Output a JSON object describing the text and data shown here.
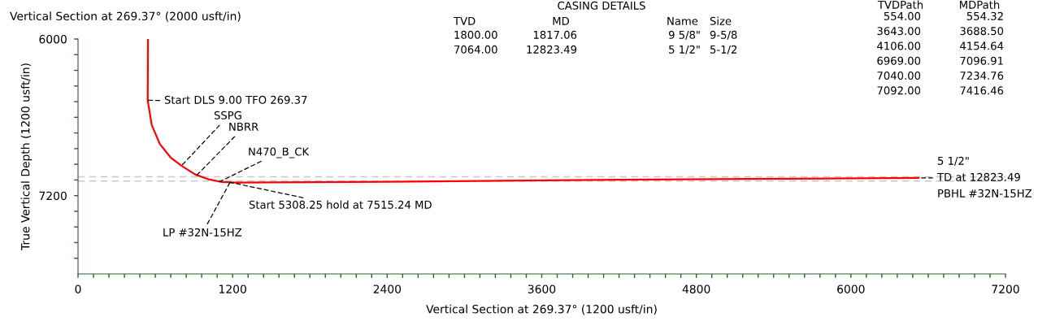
{
  "chart_data": {
    "type": "line",
    "title": "Vertical Section at 269.37° (2000 usft/in)",
    "xlabel": "Vertical Section at 269.37° (1200 usft/in)",
    "ylabel": "True Vertical Depth (1200 usft/in)",
    "x": [
      543,
      541,
      572,
      635,
      719,
      803,
      909,
      1014,
      1119,
      1224,
      2400,
      3811,
      5200,
      6525
    ],
    "series": [
      {
        "color": "#ff0000",
        "values": [
          6000,
          6471,
          6658,
          6804,
          6908,
          6971,
          7038,
          7075,
          7096,
          7100,
          7094,
          7081,
          7072,
          7064
        ]
      }
    ],
    "xlim": [
      0,
      7200
    ],
    "ylim": [
      7800,
      6000
    ],
    "xticks": [
      0,
      {
        "value": 120,
        "label": null
      },
      {
        "value": 240,
        "label": null
      },
      {
        "value": 360,
        "label": null
      },
      {
        "value": 480,
        "label": null
      },
      {
        "value": 600,
        "label": null
      },
      {
        "value": 720,
        "label": null
      },
      {
        "value": 840,
        "label": null
      },
      {
        "value": 960,
        "label": null
      },
      {
        "value": 1080,
        "label": null
      },
      1200,
      {
        "value": 1320,
        "label": null
      },
      {
        "value": 1440,
        "label": null
      },
      {
        "value": 1560,
        "label": null
      },
      {
        "value": 1680,
        "label": null
      },
      {
        "value": 1800,
        "label": null
      },
      {
        "value": 1920,
        "label": null
      },
      {
        "value": 2040,
        "label": null
      },
      {
        "value": 2160,
        "label": null
      },
      {
        "value": 2280,
        "label": null
      },
      2400,
      {
        "value": 2520,
        "label": null
      },
      {
        "value": 2640,
        "label": null
      },
      {
        "value": 2760,
        "label": null
      },
      {
        "value": 2880,
        "label": null
      },
      {
        "value": 3000,
        "label": null
      },
      {
        "value": 3120,
        "label": null
      },
      {
        "value": 3240,
        "label": null
      },
      {
        "value": 3360,
        "label": null
      },
      {
        "value": 3480,
        "label": null
      },
      3600,
      {
        "value": 3720,
        "label": null
      },
      {
        "value": 3840,
        "label": null
      },
      {
        "value": 3960,
        "label": null
      },
      {
        "value": 4080,
        "label": null
      },
      {
        "value": 4200,
        "label": null
      },
      {
        "value": 4320,
        "label": null
      },
      {
        "value": 4440,
        "label": null
      },
      {
        "value": 4560,
        "label": null
      },
      {
        "value": 4680,
        "label": null
      },
      4800,
      {
        "value": 4920,
        "label": null
      },
      {
        "value": 5040,
        "label": null
      },
      {
        "value": 5160,
        "label": null
      },
      {
        "value": 5280,
        "label": null
      },
      {
        "value": 5400,
        "label": null
      },
      {
        "value": 5520,
        "label": null
      },
      {
        "value": 5640,
        "label": null
      },
      {
        "value": 5760,
        "label": null
      },
      {
        "value": 5880,
        "label": null
      },
      6000,
      {
        "value": 6120,
        "label": null
      },
      {
        "value": 6240,
        "label": null
      },
      {
        "value": 6360,
        "label": null
      },
      {
        "value": 6480,
        "label": null
      },
      {
        "value": 6600,
        "label": null
      },
      {
        "value": 6720,
        "label": null
      },
      {
        "value": 6840,
        "label": null
      },
      {
        "value": 6960,
        "label": null
      },
      {
        "value": 7080,
        "label": null
      },
      7200
    ],
    "yticks": [
      6000,
      {
        "value": 6120,
        "label": null
      },
      {
        "value": 6240,
        "label": null
      },
      {
        "value": 6360,
        "label": null
      },
      {
        "value": 6480,
        "label": null
      },
      {
        "value": 6600,
        "label": null
      },
      {
        "value": 6720,
        "label": null
      },
      {
        "value": 6840,
        "label": null
      },
      {
        "value": 6960,
        "label": null
      },
      {
        "value": 7080,
        "label": null
      },
      7200,
      {
        "value": 7320,
        "label": null
      },
      {
        "value": 7440,
        "label": null
      },
      {
        "value": 7560,
        "label": null
      },
      {
        "value": 7680,
        "label": null
      }
    ],
    "grid": false,
    "line_style": "solid",
    "ref_lines": [
      {
        "axis": "y",
        "value": 7056,
        "color": "#c8c8c8",
        "line_style": "dashed"
      },
      {
        "axis": "y",
        "value": 7088,
        "color": "#c8c8c8",
        "line_style": "dashed"
      }
    ],
    "annotations": [
      {
        "text": "Start DLS 9.00 TFO 269.37",
        "x": 541,
        "y": 6470
      },
      {
        "text": "SSPG",
        "x": 803,
        "y": 6971
      },
      {
        "text": "NBRR",
        "x": 921,
        "y": 7044
      },
      {
        "text": "N470_B_CK",
        "x": 1098,
        "y": 7094
      },
      {
        "text": "Start 5308.25 hold at 7515.24 MD",
        "x": 1180,
        "y": 7098
      },
      {
        "text": "LP #32N-15HZ",
        "x": 1180,
        "y": 7098
      },
      {
        "text": "5 1/2\"",
        "x": 6525,
        "y": 7064
      },
      {
        "text": "TD at 12823.49",
        "x": 6525,
        "y": 7064
      },
      {
        "text": "PBHL #32N-15HZ",
        "x": 6525,
        "y": 7064
      },
      "CASING DETAILS",
      "TVD",
      "MD",
      "Name",
      "Size",
      "1800.00",
      "1817.06",
      "9 5/8\"",
      "9-5/8",
      "7064.00",
      "12823.49",
      "5 1/2\"",
      "5-1/2",
      "TVDPath",
      "MDPath",
      "554.00",
      "554.32",
      "3643.00",
      "3688.50",
      "4106.00",
      "4154.64",
      "6969.00",
      "7096.91",
      "7040.00",
      "7234.76",
      "7092.00",
      "7416.46"
    ]
  }
}
